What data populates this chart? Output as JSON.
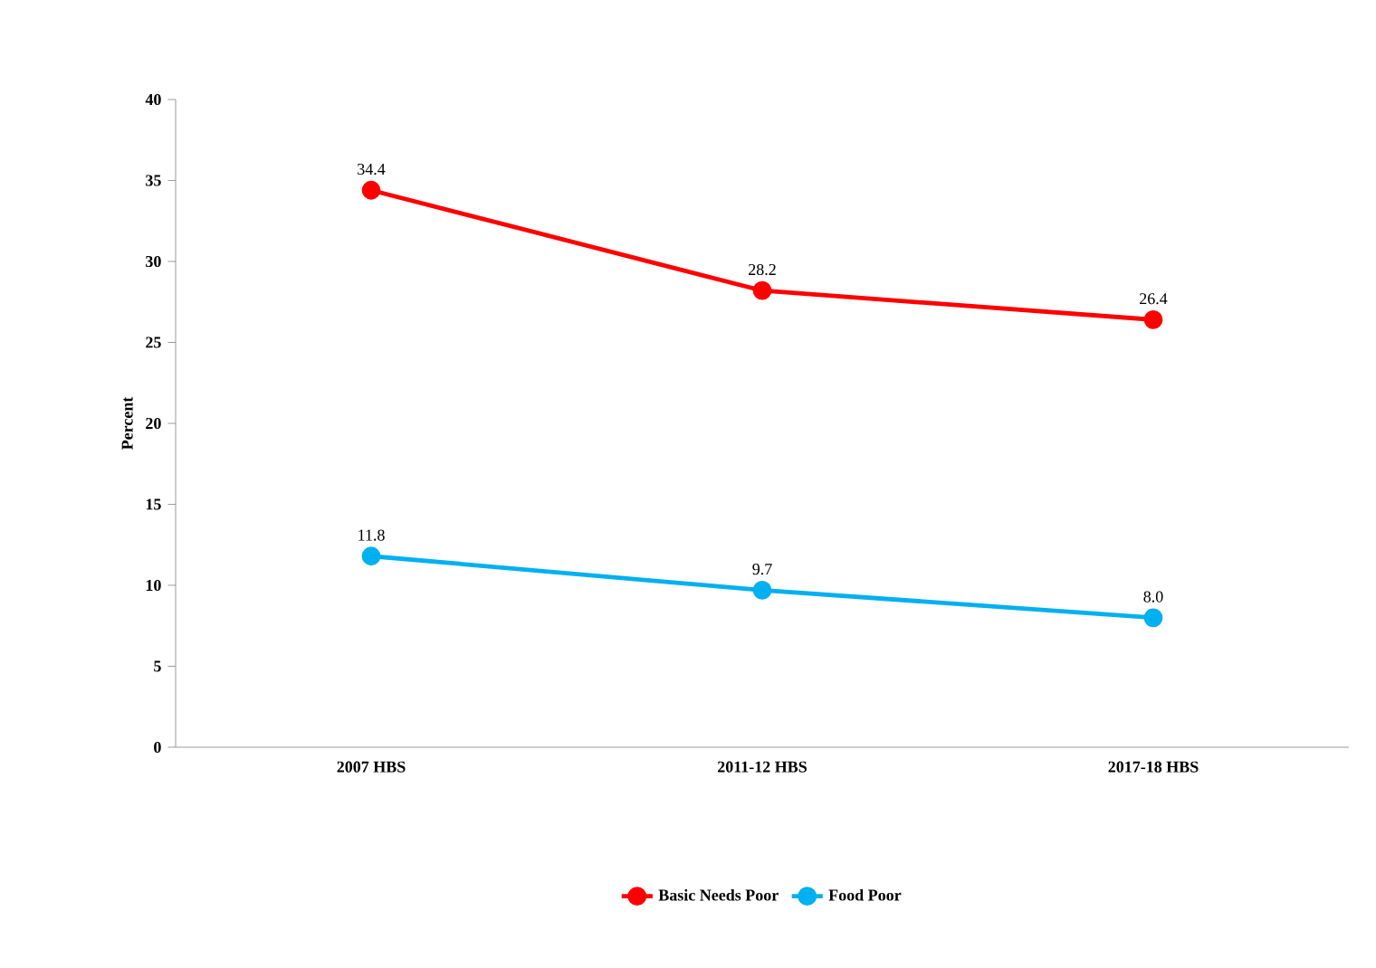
{
  "chart_data": {
    "type": "line",
    "ylabel": "Percent",
    "categories": [
      "2007 HBS",
      "2011-12 HBS",
      "2017-18 HBS"
    ],
    "series": [
      {
        "name": "Basic Needs Poor",
        "color": "#ff0000",
        "values": [
          34.4,
          28.2,
          26.4
        ],
        "value_labels": [
          "34.4",
          "28.2",
          "26.4"
        ]
      },
      {
        "name": "Food Poor",
        "color": "#00b0f0",
        "values": [
          11.8,
          9.7,
          8.0
        ],
        "value_labels": [
          "11.8",
          "9.7",
          "8.0"
        ]
      }
    ],
    "ylim": [
      0,
      40
    ],
    "yticks": [
      0,
      5,
      10,
      15,
      20,
      25,
      30,
      35,
      40
    ],
    "legend": "bottom",
    "marker": "circle",
    "line_style": "solid",
    "grid": false
  }
}
